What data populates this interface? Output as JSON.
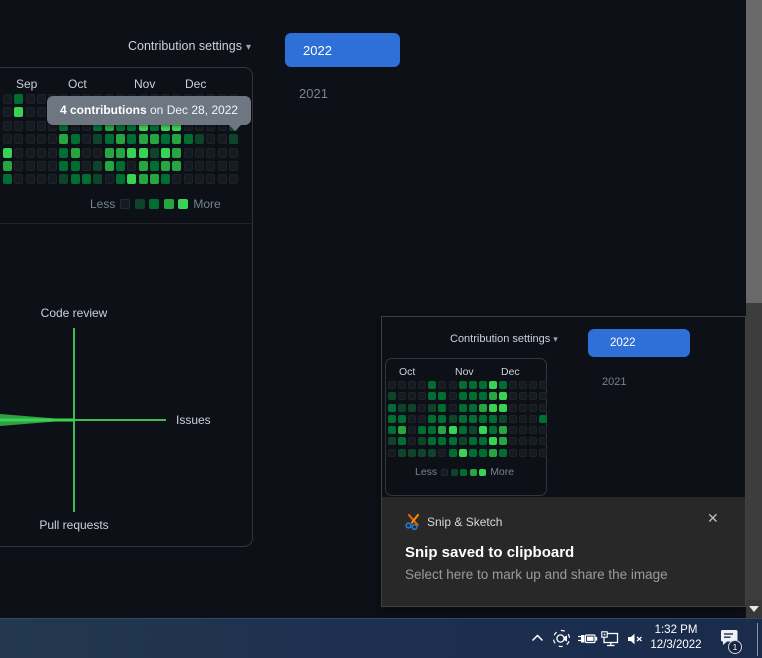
{
  "colors": {
    "page_bg": "#0d1117",
    "levels": [
      "#161b22",
      "#0e4429",
      "#006d32",
      "#26a641",
      "#39d353"
    ],
    "accent_blue": "#2e6fd8",
    "axis_green": "#3fb950",
    "polygon_green": "#2ea043",
    "bright_green": "#39d353",
    "tooltip_bg": "#6e7681",
    "card_border": "#30363d",
    "toast_bg": "#282828",
    "taskbar_bg": "#1d3150"
  },
  "main": {
    "settings_label": "Contribution settings",
    "settings_caret": "▾",
    "year_selected": "2022",
    "year_other": "2021",
    "months": [
      "Sep",
      "Oct",
      "Nov",
      "Dec"
    ],
    "legend_less": "Less",
    "legend_more": "More",
    "tooltip": {
      "count": "4 contributions",
      "date_part": " on Dec 28, 2022"
    },
    "activity_labels": {
      "top": "Code review",
      "right": "Issues",
      "bottom": "Pull requests"
    }
  },
  "chart_data": [
    {
      "type": "heatmap",
      "title": "Contribution calendar (partial view, Sep–Dec 2022)",
      "months": [
        "Sep",
        "Oct",
        "Nov",
        "Dec"
      ],
      "legend": [
        "Less",
        "More"
      ],
      "level_colors": [
        "#161b22",
        "#0e4429",
        "#006d32",
        "#26a641",
        "#39d353"
      ],
      "grid": [
        [
          0,
          2,
          0,
          0,
          0,
          0,
          0,
          0,
          0,
          0,
          0,
          0,
          0,
          0,
          0,
          0,
          0,
          0,
          0,
          0,
          0
        ],
        [
          0,
          4,
          0,
          0,
          0,
          0,
          0,
          0,
          0,
          0,
          0,
          0,
          0,
          0,
          0,
          0,
          0,
          0,
          0,
          0,
          0
        ],
        [
          0,
          0,
          0,
          0,
          0,
          2,
          0,
          0,
          2,
          3,
          2,
          2,
          4,
          2,
          4,
          4,
          0,
          0,
          0,
          0,
          1
        ],
        [
          0,
          0,
          0,
          0,
          0,
          3,
          2,
          0,
          1,
          2,
          3,
          2,
          3,
          3,
          2,
          3,
          2,
          1,
          0,
          0,
          1
        ],
        [
          4,
          0,
          0,
          0,
          0,
          2,
          3,
          0,
          0,
          3,
          3,
          4,
          4,
          1,
          4,
          3,
          0,
          0,
          0,
          0,
          0
        ],
        [
          3,
          0,
          0,
          0,
          0,
          2,
          2,
          0,
          1,
          3,
          2,
          0,
          3,
          2,
          3,
          3,
          0,
          0,
          0,
          0,
          0
        ],
        [
          2,
          0,
          0,
          0,
          0,
          1,
          2,
          2,
          1,
          0,
          2,
          4,
          3,
          3,
          2,
          0,
          0,
          0,
          0,
          0,
          0
        ]
      ],
      "highlighted_cell_value": "4 contributions on Dec 28, 2022"
    },
    {
      "type": "heatmap",
      "title": "Contribution calendar inside snip preview (Oct–Dec 2022)",
      "months": [
        "Oct",
        "Nov",
        "Dec"
      ],
      "legend": [
        "Less",
        "More"
      ],
      "level_colors": [
        "#161b22",
        "#0e4429",
        "#006d32",
        "#26a641",
        "#39d353"
      ],
      "grid": [
        [
          0,
          0,
          0,
          0,
          2,
          0,
          0,
          2,
          2,
          2,
          4,
          2,
          0,
          0,
          0,
          0
        ],
        [
          1,
          0,
          0,
          0,
          2,
          2,
          0,
          2,
          2,
          2,
          3,
          4,
          0,
          0,
          0,
          0
        ],
        [
          2,
          1,
          1,
          0,
          1,
          2,
          0,
          2,
          2,
          3,
          4,
          4,
          0,
          0,
          0,
          0
        ],
        [
          2,
          2,
          0,
          0,
          2,
          2,
          1,
          2,
          2,
          2,
          2,
          1,
          0,
          0,
          0,
          2
        ],
        [
          2,
          3,
          0,
          2,
          2,
          3,
          4,
          2,
          1,
          4,
          2,
          3,
          0,
          0,
          0,
          0
        ],
        [
          1,
          2,
          0,
          1,
          2,
          2,
          2,
          1,
          2,
          2,
          4,
          3,
          0,
          0,
          0,
          0
        ],
        [
          0,
          1,
          1,
          1,
          1,
          0,
          2,
          4,
          2,
          2,
          3,
          2,
          0,
          0,
          0,
          0
        ]
      ]
    }
  ],
  "toast": {
    "app_name": "Snip & Sketch",
    "close_glyph": "✕",
    "title": "Snip saved to clipboard",
    "subtitle": "Select here to mark up and share the image",
    "preview": {
      "settings_label": "Contribution settings",
      "settings_caret": "▾",
      "year_selected": "2022",
      "year_other": "2021",
      "months": [
        "Oct",
        "Nov",
        "Dec"
      ],
      "legend_less": "Less",
      "legend_more": "More"
    }
  },
  "taskbar": {
    "time": "1:32 PM",
    "date": "12/3/2022",
    "badge_count": "1"
  }
}
